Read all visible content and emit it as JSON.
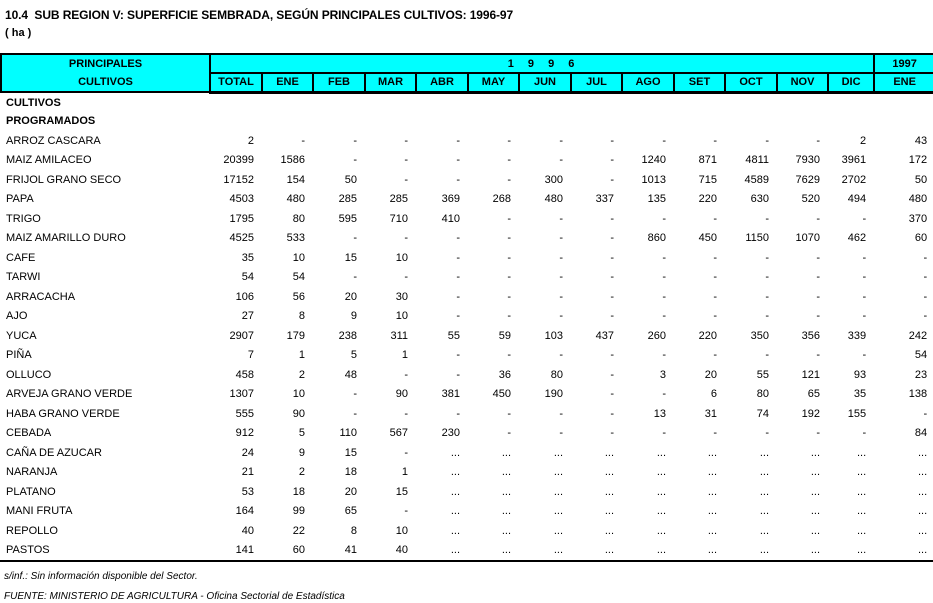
{
  "page": {
    "title": "10.4  SUB REGION V: SUPERFICIE SEMBRADA, SEGÚN PRINCIPALES CULTIVOS: 1996-97",
    "unit": "( ha )"
  },
  "colors": {
    "header_bg": "#00FFFF",
    "border": "#000000",
    "text": "#000000"
  },
  "table": {
    "header": {
      "col_group_line1": "PRINCIPALES",
      "col_group_line2": "CULTIVOS",
      "year_1996": "1 9 9 6",
      "year_1997": "1997",
      "columns_1996": [
        "TOTAL",
        "ENE",
        "FEB",
        "MAR",
        "ABR",
        "MAY",
        "JUN",
        "JUL",
        "AGO",
        "SET",
        "OCT",
        "NOV",
        "DIC"
      ],
      "column_1997": "ENE"
    },
    "section_rows": [
      "CULTIVOS",
      "PROGRAMADOS"
    ],
    "rows": [
      {
        "label": "ARROZ CASCARA",
        "values": [
          "2",
          "-",
          "-",
          "-",
          "-",
          "-",
          "-",
          "-",
          "-",
          "-",
          "-",
          "-",
          "2",
          "43"
        ]
      },
      {
        "label": "MAIZ AMILACEO",
        "values": [
          "20399",
          "1586",
          "-",
          "-",
          "-",
          "-",
          "-",
          "-",
          "1240",
          "871",
          "4811",
          "7930",
          "3961",
          "172"
        ]
      },
      {
        "label": "FRIJOL GRANO SECO",
        "values": [
          "17152",
          "154",
          "50",
          "-",
          "-",
          "-",
          "300",
          "-",
          "1013",
          "715",
          "4589",
          "7629",
          "2702",
          "50"
        ]
      },
      {
        "label": "PAPA",
        "values": [
          "4503",
          "480",
          "285",
          "285",
          "369",
          "268",
          "480",
          "337",
          "135",
          "220",
          "630",
          "520",
          "494",
          "480"
        ]
      },
      {
        "label": "TRIGO",
        "values": [
          "1795",
          "80",
          "595",
          "710",
          "410",
          "-",
          "-",
          "-",
          "-",
          "-",
          "-",
          "-",
          "-",
          "370"
        ]
      },
      {
        "label": "MAIZ AMARILLO DURO",
        "values": [
          "4525",
          "533",
          "-",
          "-",
          "-",
          "-",
          "-",
          "-",
          "860",
          "450",
          "1150",
          "1070",
          "462",
          "60"
        ]
      },
      {
        "label": "CAFE",
        "values": [
          "35",
          "10",
          "15",
          "10",
          "-",
          "-",
          "-",
          "-",
          "-",
          "-",
          "-",
          "-",
          "-",
          "-"
        ]
      },
      {
        "label": "TARWI",
        "values": [
          "54",
          "54",
          "-",
          "-",
          "-",
          "-",
          "-",
          "-",
          "-",
          "-",
          "-",
          "-",
          "-",
          "-"
        ]
      },
      {
        "label": "ARRACACHA",
        "values": [
          "106",
          "56",
          "20",
          "30",
          "-",
          "-",
          "-",
          "-",
          "-",
          "-",
          "-",
          "-",
          "-",
          "-"
        ]
      },
      {
        "label": "AJO",
        "values": [
          "27",
          "8",
          "9",
          "10",
          "-",
          "-",
          "-",
          "-",
          "-",
          "-",
          "-",
          "-",
          "-",
          "-"
        ]
      },
      {
        "label": "YUCA",
        "values": [
          "2907",
          "179",
          "238",
          "311",
          "55",
          "59",
          "103",
          "437",
          "260",
          "220",
          "350",
          "356",
          "339",
          "242"
        ]
      },
      {
        "label": "PIÑA",
        "values": [
          "7",
          "1",
          "5",
          "1",
          "-",
          "-",
          "-",
          "-",
          "-",
          "-",
          "-",
          "-",
          "-",
          "54"
        ]
      },
      {
        "label": "OLLUCO",
        "values": [
          "458",
          "2",
          "48",
          "-",
          "-",
          "36",
          "80",
          "-",
          "3",
          "20",
          "55",
          "121",
          "93",
          "23"
        ]
      },
      {
        "label": "ARVEJA GRANO VERDE",
        "values": [
          "1307",
          "10",
          "-",
          "90",
          "381",
          "450",
          "190",
          "-",
          "-",
          "6",
          "80",
          "65",
          "35",
          "138"
        ]
      },
      {
        "label": "HABA GRANO VERDE",
        "values": [
          "555",
          "90",
          "-",
          "-",
          "-",
          "-",
          "-",
          "-",
          "13",
          "31",
          "74",
          "192",
          "155",
          "-"
        ]
      },
      {
        "label": "CEBADA",
        "values": [
          "912",
          "5",
          "110",
          "567",
          "230",
          "-",
          "-",
          "-",
          "-",
          "-",
          "-",
          "-",
          "-",
          "84"
        ]
      },
      {
        "label": "CAÑA DE AZUCAR",
        "values": [
          "24",
          "9",
          "15",
          "-",
          "...",
          "...",
          "...",
          "...",
          "...",
          "...",
          "...",
          "...",
          "...",
          "..."
        ]
      },
      {
        "label": "NARANJA",
        "values": [
          "21",
          "2",
          "18",
          "1",
          "...",
          "...",
          "...",
          "...",
          "...",
          "...",
          "...",
          "...",
          "...",
          "..."
        ]
      },
      {
        "label": "PLATANO",
        "values": [
          "53",
          "18",
          "20",
          "15",
          "...",
          "...",
          "...",
          "...",
          "...",
          "...",
          "...",
          "...",
          "...",
          "..."
        ]
      },
      {
        "label": "MANI FRUTA",
        "values": [
          "164",
          "99",
          "65",
          "-",
          "...",
          "...",
          "...",
          "...",
          "...",
          "...",
          "...",
          "...",
          "...",
          "..."
        ]
      },
      {
        "label": "REPOLLO",
        "values": [
          "40",
          "22",
          "8",
          "10",
          "...",
          "...",
          "...",
          "...",
          "...",
          "...",
          "...",
          "...",
          "...",
          "..."
        ]
      },
      {
        "label": "PASTOS",
        "values": [
          "141",
          "60",
          "41",
          "40",
          "...",
          "...",
          "...",
          "...",
          "...",
          "...",
          "...",
          "...",
          "...",
          "..."
        ]
      }
    ]
  },
  "footer": {
    "footnote": "s/inf.: Sin información disponible del Sector.",
    "source": "FUENTE: MINISTERIO DE AGRICULTURA - Oficina Sectorial de Estadística"
  }
}
